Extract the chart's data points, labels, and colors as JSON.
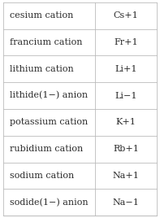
{
  "rows": [
    [
      "cesium cation",
      "Cs+1"
    ],
    [
      "francium cation",
      "Fr+1"
    ],
    [
      "lithium cation",
      "Li+1"
    ],
    [
      "lithide(1−) anion",
      "Li−1"
    ],
    [
      "potassium cation",
      "K+1"
    ],
    [
      "rubidium cation",
      "Rb+1"
    ],
    [
      "sodium cation",
      "Na+1"
    ],
    [
      "sodide(1−) anion",
      "Na−1"
    ]
  ],
  "col_split": 0.6,
  "background_color": "#ffffff",
  "border_color": "#bbbbbb",
  "text_color": "#2b2b2b",
  "font_size": 8.0,
  "figsize": [
    1.97,
    2.68
  ],
  "dpi": 100
}
